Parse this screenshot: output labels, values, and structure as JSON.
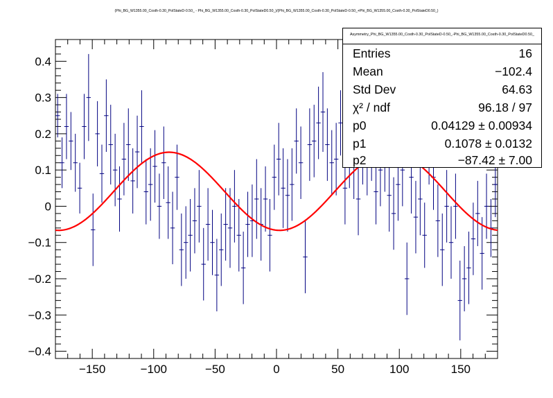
{
  "title": "(Phi_BG_W1355.00_Costh-0.30_PolStateD-0.50_ - Phi_BG_W1355.00_Costh-0.30_PolStateD0.50_)/(Phi_BG_W1355.00_Costh-0.30_PolStateD-0.50_+Phi_BG_W1355.00_Costh-0.30_PolStateD0.50_)",
  "stats": {
    "name": "Asymmetry_Phi_BG_W1355.00_Costh-0.30_PolStateD-0.50_-Phi_BG_W1355.00_Costh-0.30_PolStateD0.50_",
    "rows": [
      {
        "key": "Entries",
        "value": "16"
      },
      {
        "key": "Mean",
        "value": "−102.4"
      },
      {
        "key": "Std Dev",
        "value": "64.63"
      },
      {
        "key": "χ² / ndf",
        "value": "96.18 / 97"
      },
      {
        "key": "p0",
        "value": "0.04129 ± 0.00934"
      },
      {
        "key": "p1",
        "value": "0.1078 ± 0.0132"
      },
      {
        "key": "p2",
        "value": "−87.42 ± 7.00"
      }
    ]
  },
  "colors": {
    "points": "#000080",
    "fit": "#ff0000",
    "axis": "#000000"
  },
  "chart_data": {
    "type": "scatter",
    "title": "(Phi_BG_W1355.00_Costh-0.30_PolStateD-0.50_ - Phi_BG_W1355.00_Costh-0.30_PolStateD0.50_)/(Phi_BG_W1355.00_Costh-0.30_PolStateD-0.50_+Phi_BG_W1355.00_Costh-0.30_PolStateD0.50_)",
    "xlabel": "",
    "ylabel": "",
    "xlim": [
      -180,
      180
    ],
    "ylim": [
      -0.42,
      0.46
    ],
    "xticks": [
      -150,
      -100,
      -50,
      0,
      50,
      100,
      150
    ],
    "xtick_labels": [
      "−150",
      "−100",
      "−50",
      "0",
      "50",
      "100",
      "150"
    ],
    "yticks": [
      -0.4,
      -0.3,
      -0.2,
      -0.1,
      0,
      0.1,
      0.2,
      0.3,
      0.4
    ],
    "ytick_labels": [
      "−0.4",
      "−0.3",
      "−0.2",
      "−0.1",
      "0",
      "0.1",
      "0.2",
      "0.3",
      "0.4"
    ],
    "bin_width": 3.6,
    "fit": {
      "function": "p0 + p1*cos((x - p2)*pi/90)",
      "p0": 0.04129,
      "p1": 0.1078,
      "p2": -87.42
    },
    "series": [
      {
        "name": "asymmetry",
        "x": [
          -178.2,
          -174.6,
          -171.0,
          -167.4,
          -163.8,
          -160.2,
          -156.6,
          -153.0,
          -149.4,
          -145.8,
          -142.2,
          -138.6,
          -135.0,
          -131.4,
          -127.8,
          -124.2,
          -120.6,
          -117.0,
          -113.4,
          -109.8,
          -106.2,
          -102.6,
          -99.0,
          -95.4,
          -91.8,
          -88.2,
          -84.6,
          -81.0,
          -77.4,
          -73.8,
          -70.2,
          -66.6,
          -63.0,
          -59.4,
          -55.8,
          -52.2,
          -48.6,
          -45.0,
          -41.4,
          -37.8,
          -34.2,
          -30.6,
          -27.0,
          -23.4,
          -19.8,
          -16.2,
          -12.6,
          -9.0,
          -5.4,
          -1.8,
          1.8,
          5.4,
          9.0,
          12.6,
          16.2,
          19.8,
          23.4,
          27.0,
          30.6,
          34.2,
          37.8,
          41.4,
          45.0,
          48.6,
          52.2,
          55.8,
          59.4,
          63.0,
          66.6,
          70.2,
          73.8,
          77.4,
          81.0,
          84.6,
          88.2,
          91.8,
          95.4,
          99.0,
          102.6,
          106.2,
          109.8,
          113.4,
          117.0,
          120.6,
          124.2,
          127.8,
          131.4,
          135.0,
          138.6,
          142.2,
          145.8,
          149.4,
          153.0,
          156.6,
          160.2,
          163.8,
          167.4,
          171.0,
          174.6,
          178.2
        ],
        "y": [
          0.25,
          0.12,
          0.22,
          0.18,
          0.12,
          0.05,
          0.22,
          0.3,
          -0.065,
          0.2,
          0.09,
          0.25,
          0.17,
          0.1,
          0.02,
          0.13,
          0.17,
          0.07,
          0.15,
          0.22,
          0.04,
          0.06,
          0.11,
          0.0,
          0.12,
          0.01,
          -0.06,
          0.08,
          -0.12,
          -0.1,
          -0.08,
          -0.04,
          0.0,
          -0.16,
          -0.05,
          -0.1,
          -0.19,
          -0.12,
          -0.05,
          -0.06,
          0.0,
          -0.08,
          -0.17,
          -0.05,
          -0.04,
          0.02,
          -0.05,
          0.02,
          -0.08,
          0.08,
          0.13,
          0.05,
          0.03,
          0.06,
          0.18,
          0.12,
          -0.14,
          0.17,
          0.18,
          0.23,
          0.26,
          0.17,
          0.12,
          0.13,
          0.23,
          0.05,
          0.15,
          0.11,
          0.02,
          0.16,
          0.12,
          0.17,
          0.04,
          0.1,
          0.14,
          0.03,
          -0.02,
          0.06,
          0.1,
          -0.2,
          0.08,
          -0.03,
          0.02,
          -0.08,
          0.16,
          0.08,
          -0.04,
          -0.12,
          0.0,
          -0.1,
          0.0,
          -0.26,
          -0.2,
          -0.17,
          -0.09,
          -0.02,
          -0.13,
          0.0,
          -0.06,
          0.06
        ],
        "yerr": [
          0.06,
          0.07,
          0.09,
          0.08,
          0.08,
          0.07,
          0.09,
          0.12,
          0.1,
          0.09,
          0.08,
          0.1,
          0.11,
          0.1,
          0.09,
          0.1,
          0.1,
          0.09,
          0.1,
          0.1,
          0.09,
          0.1,
          0.1,
          0.09,
          0.1,
          0.1,
          0.1,
          0.09,
          0.1,
          0.1,
          0.1,
          0.09,
          0.1,
          0.1,
          0.1,
          0.09,
          0.1,
          0.1,
          0.1,
          0.11,
          0.1,
          0.1,
          0.1,
          0.09,
          0.1,
          0.11,
          0.1,
          0.09,
          0.1,
          0.09,
          0.1,
          0.11,
          0.1,
          0.1,
          0.09,
          0.1,
          0.1,
          0.1,
          0.1,
          0.1,
          0.11,
          0.1,
          0.09,
          0.1,
          0.09,
          0.1,
          0.1,
          0.09,
          0.1,
          0.1,
          0.09,
          0.1,
          0.09,
          0.1,
          0.1,
          0.1,
          0.1,
          0.1,
          0.1,
          0.1,
          0.1,
          0.1,
          0.1,
          0.09,
          0.1,
          0.09,
          0.1,
          0.1,
          0.1,
          0.1,
          0.09,
          0.11,
          0.09,
          0.1,
          0.1,
          0.09,
          0.1,
          0.09,
          0.08,
          0.09
        ]
      }
    ]
  }
}
